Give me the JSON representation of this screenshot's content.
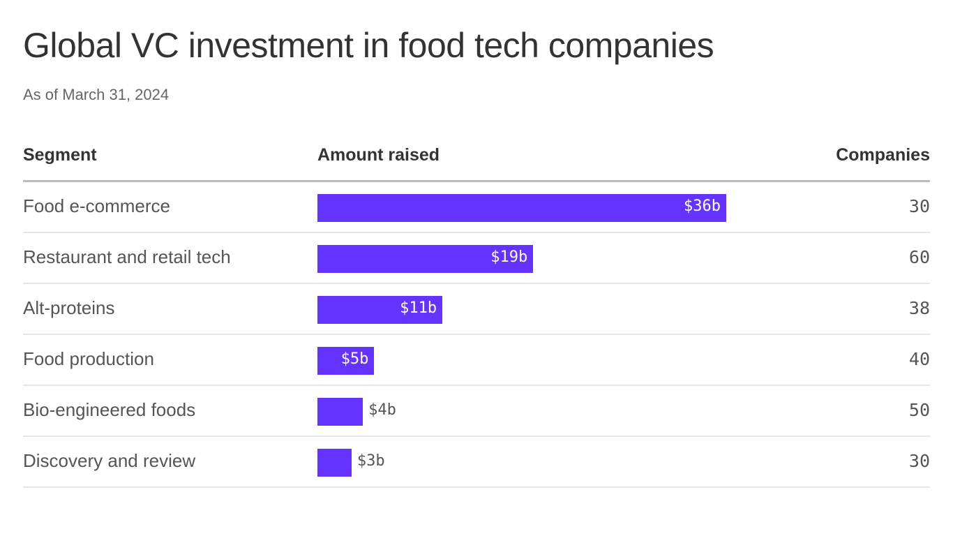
{
  "title": "Global VC investment in food tech companies",
  "subtitle": "As of March 31, 2024",
  "chart_data": {
    "type": "table",
    "columns": [
      "Segment",
      "Amount raised",
      "Companies"
    ],
    "bar_color": "#6533ff",
    "unit": "billion USD",
    "rows": [
      {
        "segment": "Food e-commerce",
        "amount": 36,
        "amount_label": "$36b",
        "companies": "30"
      },
      {
        "segment": "Restaurant and retail tech",
        "amount": 19,
        "amount_label": "$19b",
        "companies": "60"
      },
      {
        "segment": "Alt-proteins",
        "amount": 11,
        "amount_label": "$11b",
        "companies": "38"
      },
      {
        "segment": "Food production",
        "amount": 5,
        "amount_label": "$5b",
        "companies": "40"
      },
      {
        "segment": "Bio-engineered foods",
        "amount": 4,
        "amount_label": "$4b",
        "companies": "50"
      },
      {
        "segment": "Discovery and review",
        "amount": 3,
        "amount_label": "$3b",
        "companies": "30"
      }
    ]
  }
}
